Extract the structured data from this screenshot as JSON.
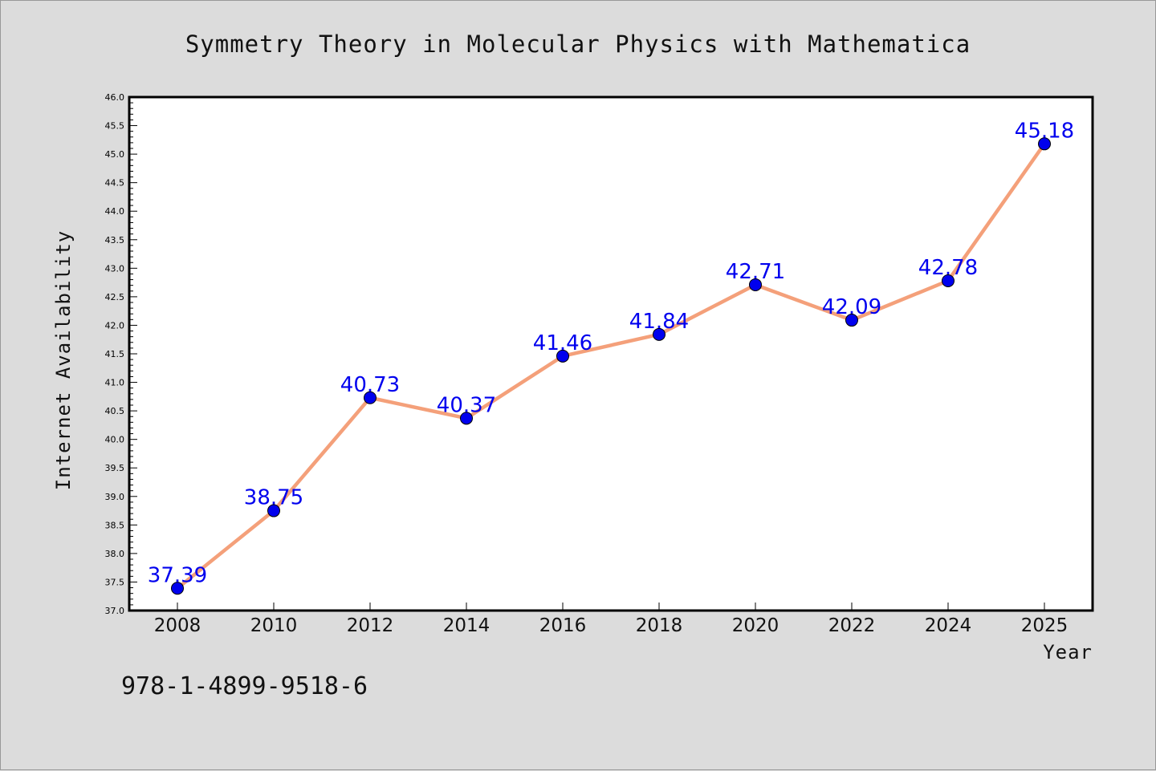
{
  "chart_data": {
    "type": "line",
    "title": "Symmetry Theory in Molecular Physics with Mathematica",
    "xlabel": "Year",
    "ylabel": "Internet Availability",
    "categories": [
      "2008",
      "2010",
      "2012",
      "2014",
      "2016",
      "2018",
      "2020",
      "2022",
      "2024",
      "2025"
    ],
    "series": [
      {
        "values": [
          37.39,
          38.75,
          40.73,
          40.37,
          41.46,
          41.84,
          42.71,
          42.09,
          42.78,
          45.18
        ],
        "labels": [
          "37.39",
          "38.75",
          "40.73",
          "40.37",
          "41.46",
          "41.84",
          "42.71",
          "42.09",
          "42.78",
          "45.18"
        ],
        "line_color": "#f4a07a",
        "marker_color": "#0000ee"
      }
    ],
    "ylim": [
      37.0,
      46.0
    ],
    "y_major_step": 0.5,
    "y_minor_step": 0.1,
    "grid": false,
    "legend": "none",
    "label_color": "#0000ee",
    "background": "#dcdcdc",
    "plot_background": "#ffffff"
  },
  "footer": {
    "isbn": "978-1-4899-9518-6"
  }
}
